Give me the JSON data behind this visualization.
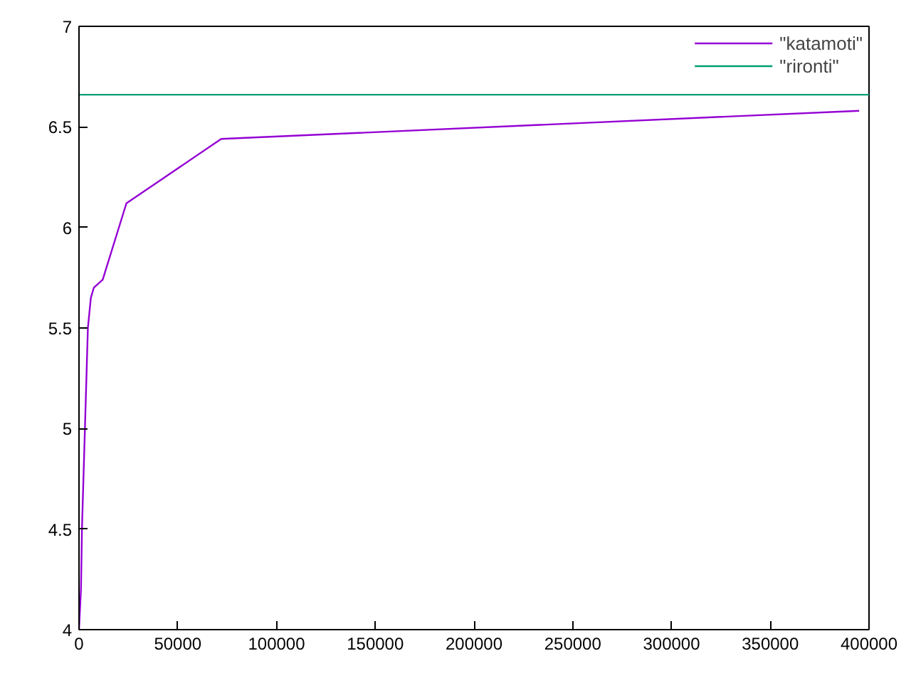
{
  "chart_data": {
    "type": "line",
    "xlim": [
      0,
      400000
    ],
    "ylim": [
      4,
      7
    ],
    "xticks": [
      0,
      50000,
      100000,
      150000,
      200000,
      250000,
      300000,
      350000,
      400000
    ],
    "yticks": [
      4,
      4.5,
      5,
      5.5,
      6,
      6.5,
      7
    ],
    "series": [
      {
        "name": "\"katamoti\"",
        "color": "#9400d3",
        "x": [
          0,
          1000,
          1500,
          3000,
          4500,
          6000,
          7500,
          12000,
          24000,
          72000,
          395000
        ],
        "values": [
          4.0,
          4.2,
          4.5,
          5.0,
          5.5,
          5.65,
          5.7,
          5.74,
          6.12,
          6.44,
          6.58
        ]
      },
      {
        "name": "\"rironti\"",
        "color": "#009e73",
        "x": [
          0,
          400000
        ],
        "values": [
          6.66,
          6.66
        ]
      }
    ],
    "legend": "top right",
    "grid": false
  }
}
